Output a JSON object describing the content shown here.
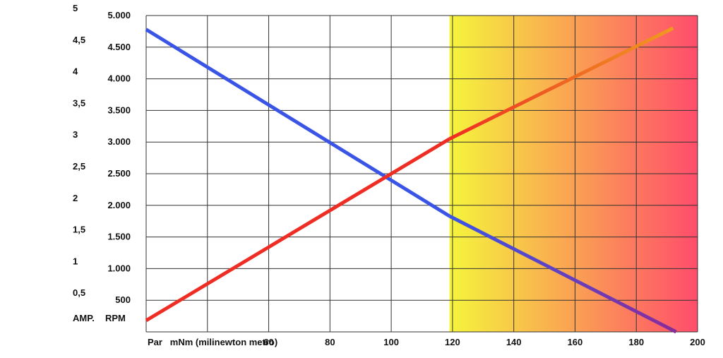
{
  "chart_data": {
    "type": "line",
    "xlabel": "Par   mNm (milinewton metro)",
    "x_ticks": [
      "60",
      "80",
      "100",
      "120",
      "140",
      "160",
      "180",
      "200"
    ],
    "xlim": [
      20,
      200
    ],
    "y_left_ticks": [
      "5",
      "4,5",
      "4",
      "3,5",
      "3",
      "2,5",
      "2",
      "1,5",
      "1",
      "0,5"
    ],
    "y_left_label": "AMP.",
    "y_left_lim": [
      0,
      5
    ],
    "y_right_ticks": [
      "5.000",
      "4.500",
      "4.000",
      "3.500",
      "3.000",
      "2.500",
      "2.000",
      "1.500",
      "1.000",
      "500"
    ],
    "y_right_label": "RPM",
    "y_right_lim": [
      0,
      5000
    ],
    "grid": true,
    "highlight_region": {
      "x_start": 119,
      "x_end": 200,
      "colors": [
        "#f5f53c",
        "#ff4d6b"
      ]
    },
    "series": [
      {
        "axis": "right",
        "color": "#3a55e6",
        "fade_color": "#8a2c9a",
        "x": [
          20,
          119,
          193
        ],
        "y": [
          4780,
          1830,
          0
        ]
      },
      {
        "axis": "left",
        "color": "#ee2e24",
        "fade_color": "#f09a20",
        "x": [
          20,
          119,
          192
        ],
        "y": [
          0.18,
          3.05,
          4.8
        ]
      }
    ]
  }
}
